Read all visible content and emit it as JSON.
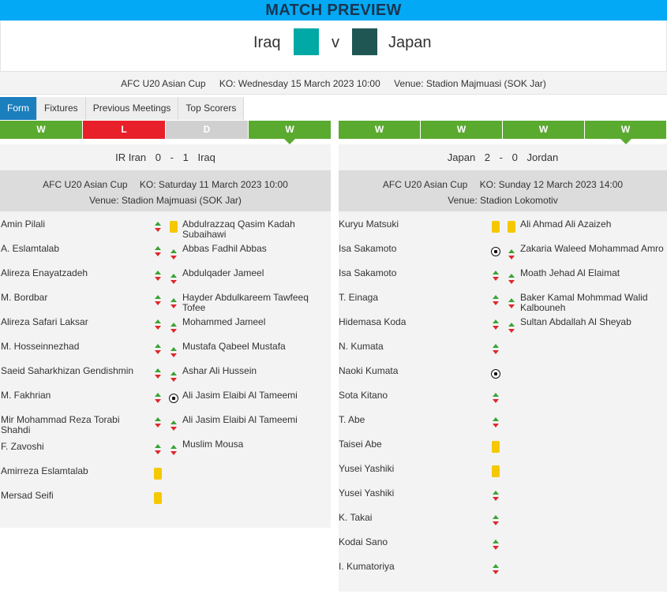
{
  "header": {
    "title": "MATCH PREVIEW"
  },
  "teams": {
    "home": "Iraq",
    "vs": "v",
    "away": "Japan",
    "home_color": "#00a9a6",
    "away_color": "#1f5653"
  },
  "info": {
    "competition": "AFC U20 Asian Cup",
    "ko": "KO: Wednesday 15 March 2023 10:00",
    "venue": "Venue: Stadion Majmuasi (SOK Jar)"
  },
  "tabs": [
    "Form",
    "Fixtures",
    "Previous Meetings",
    "Top Scorers"
  ],
  "left": {
    "form": [
      "W",
      "L",
      "D",
      "W"
    ],
    "score": {
      "home": "IR Iran",
      "home_goals": "0",
      "sep": "-",
      "away_goals": "1",
      "away": "Iraq"
    },
    "match": {
      "competition": "AFC U20 Asian Cup",
      "ko": "KO: Saturday 11 March 2023 10:00",
      "venue": "Venue: Stadion Majmuasi (SOK Jar)"
    },
    "home_players": [
      {
        "name": "Amin Pilali",
        "event": "sub-icon"
      },
      {
        "name": "A. Eslamtalab",
        "event": "sub-icon"
      },
      {
        "name": "Alireza Enayatzadeh",
        "event": "sub-icon"
      },
      {
        "name": "M. Bordbar",
        "event": "sub-icon"
      },
      {
        "name": "Alireza Safari Laksar",
        "event": "sub-icon"
      },
      {
        "name": "M. Hosseinnezhad",
        "event": "sub-icon"
      },
      {
        "name": "Saeid Saharkhizan Gendishmin",
        "event": "sub-icon"
      },
      {
        "name": "M. Fakhrian",
        "event": "sub-icon"
      },
      {
        "name": "Mir Mohammad Reza Torabi Shahdi",
        "event": "sub-icon"
      },
      {
        "name": "F. Zavoshi",
        "event": "sub-icon"
      },
      {
        "name": "Amirreza Eslamtalab",
        "event": "yellow-card-icon"
      },
      {
        "name": "Mersad Seifi",
        "event": "yellow-card-icon"
      }
    ],
    "away_players": [
      {
        "name": "Abdulrazzaq Qasim Kadah Subaihawi",
        "event": "yellow-card-icon"
      },
      {
        "name": "Abbas Fadhil Abbas",
        "event": "sub-icon"
      },
      {
        "name": "Abdulqader Jameel",
        "event": "sub-icon"
      },
      {
        "name": "Hayder Abdulkareem Tawfeeq Tofee",
        "event": "sub-icon"
      },
      {
        "name": "Mohammed Jameel",
        "event": "sub-icon"
      },
      {
        "name": "Mustafa Qabeel Mustafa",
        "event": "sub-icon"
      },
      {
        "name": "Ashar Ali Hussein",
        "event": "sub-icon"
      },
      {
        "name": "Ali Jasim Elaibi Al Tameemi",
        "event": "goal-ball-icon"
      },
      {
        "name": "Ali Jasim Elaibi Al Tameemi",
        "event": "sub-icon"
      },
      {
        "name": "Muslim Mousa",
        "event": "sub-icon"
      }
    ]
  },
  "right": {
    "form": [
      "W",
      "W",
      "W",
      "W"
    ],
    "score": {
      "home": "Japan",
      "home_goals": "2",
      "sep": "-",
      "away_goals": "0",
      "away": "Jordan"
    },
    "match": {
      "competition": "AFC U20 Asian Cup",
      "ko": "KO: Sunday 12 March 2023 14:00",
      "venue": "Venue: Stadion Lokomotiv"
    },
    "home_players": [
      {
        "name": "Kuryu Matsuki",
        "event": "yellow-card-icon"
      },
      {
        "name": "Isa Sakamoto",
        "event": "goal-ball-icon"
      },
      {
        "name": "Isa Sakamoto",
        "event": "sub-icon"
      },
      {
        "name": "T. Einaga",
        "event": "sub-icon"
      },
      {
        "name": "Hidemasa Koda",
        "event": "sub-icon"
      },
      {
        "name": "N. Kumata",
        "event": "sub-icon"
      },
      {
        "name": "Naoki Kumata",
        "event": "goal-ball-icon"
      },
      {
        "name": "Sota Kitano",
        "event": "sub-icon"
      },
      {
        "name": "T. Abe",
        "event": "sub-icon"
      },
      {
        "name": "Taisei Abe",
        "event": "yellow-card-icon"
      },
      {
        "name": "Yusei Yashiki",
        "event": "yellow-card-icon"
      },
      {
        "name": "Yusei Yashiki",
        "event": "sub-icon"
      },
      {
        "name": "K. Takai",
        "event": "sub-icon"
      },
      {
        "name": "Kodai Sano",
        "event": "sub-icon"
      },
      {
        "name": "I. Kumatoriya",
        "event": "sub-icon"
      }
    ],
    "away_players": [
      {
        "name": "Ali Ahmad Ali Azaizeh",
        "event": "yellow-card-icon"
      },
      {
        "name": "Zakaria Waleed Mohammad Amro",
        "event": "sub-icon"
      },
      {
        "name": "Moath Jehad Al Elaimat",
        "event": "sub-icon"
      },
      {
        "name": "Baker Kamal Mohmmad Walid Kalbouneh",
        "event": "sub-icon"
      },
      {
        "name": "Sultan Abdallah Al Sheyab",
        "event": "sub-icon"
      }
    ]
  }
}
